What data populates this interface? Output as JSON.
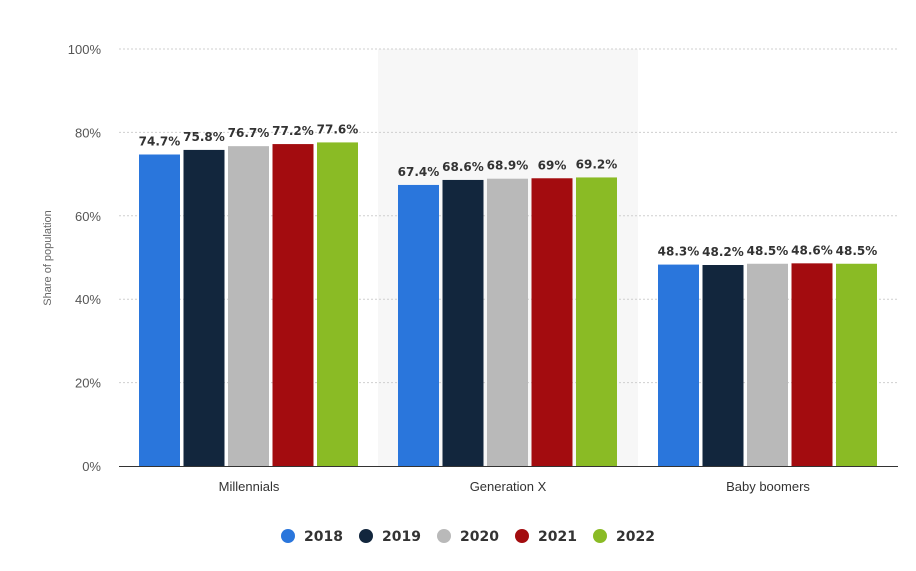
{
  "chart_data": {
    "type": "bar",
    "categories": [
      "Millennials",
      "Generation X",
      "Baby boomers"
    ],
    "series": [
      {
        "name": "2018",
        "color": "#2a76dc",
        "values": [
          74.7,
          67.4,
          48.3
        ],
        "labels": [
          "74.7%",
          "67.4%",
          "48.3%"
        ]
      },
      {
        "name": "2019",
        "color": "#12263d",
        "values": [
          75.8,
          68.6,
          48.2
        ],
        "labels": [
          "75.8%",
          "68.6%",
          "48.2%"
        ]
      },
      {
        "name": "2020",
        "color": "#b9b9b9",
        "values": [
          76.7,
          68.9,
          48.5
        ],
        "labels": [
          "76.7%",
          "68.9%",
          "48.5%"
        ]
      },
      {
        "name": "2021",
        "color": "#a30c0f",
        "values": [
          77.2,
          69,
          48.6
        ],
        "labels": [
          "77.2%",
          "69%",
          "48.6%"
        ]
      },
      {
        "name": "2022",
        "color": "#8abb25",
        "values": [
          77.6,
          69.2,
          48.5
        ],
        "labels": [
          "77.6%",
          "69.2%",
          "48.5%"
        ]
      }
    ],
    "ylabel": "Share of population",
    "yticks": [
      "0%",
      "20%",
      "40%",
      "60%",
      "80%",
      "100%"
    ],
    "ylim": [
      0,
      100
    ],
    "grid": true,
    "legend": "bottom-center",
    "highlight_category": "Generation X"
  }
}
